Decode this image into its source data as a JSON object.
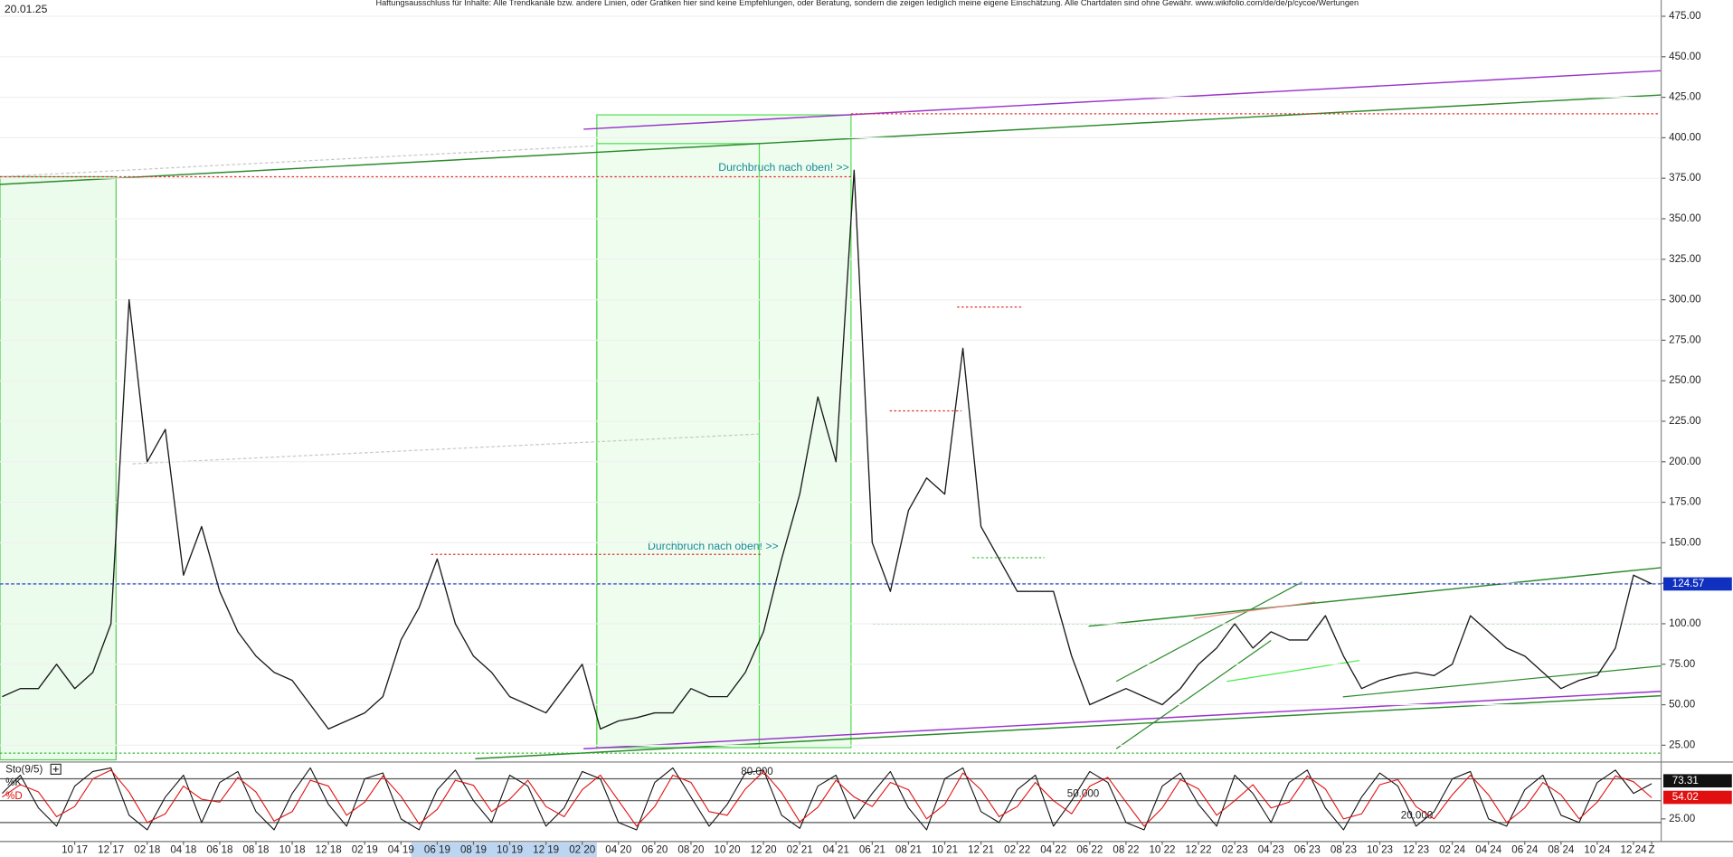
{
  "chart_data": [
    {
      "type": "line",
      "title": "Haftungsausschluss für Inhalte: Alle Trendkanäle bzw. andere Linien, oder Grafiken hier sind keine Empfehlungen, oder Beratung, sondern die zeigen lediglich meine eigene Einschätzung. Alle Chartdaten sind ohne Gewähr. www.wikifolio.com/de/de/p/cycoe/Wertungen",
      "date_label": "20.01.25",
      "annotations": [
        "Durchbruch nach oben! >>",
        "Durchbruch nach oben! >>"
      ],
      "categories": [
        null,
        null,
        null,
        null,
        "10 17",
        null,
        "12 17",
        null,
        "02 18",
        null,
        "04 18",
        null,
        "06 18",
        null,
        "08 18",
        null,
        "10 18",
        null,
        "12 18",
        null,
        "02 19",
        null,
        "04 19",
        null,
        "06 19",
        null,
        "08 19",
        null,
        "10 19",
        null,
        "12 19",
        null,
        "02 20",
        null,
        "04 20",
        null,
        "06 20",
        null,
        "08 20",
        null,
        "10 20",
        null,
        "12 20",
        null,
        "02 21",
        null,
        "04 21",
        null,
        "06 21",
        null,
        "08 21",
        null,
        "10 21",
        null,
        "12 21",
        null,
        "02 22",
        null,
        "04 22",
        null,
        "06 22",
        null,
        "08 22",
        null,
        "10 22",
        null,
        "12 22",
        null,
        "02 23",
        null,
        "04 23",
        null,
        "06 23",
        null,
        "08 23",
        null,
        "10 23",
        null,
        "12 23",
        null,
        "02 24",
        null,
        "04 24",
        null,
        "06 24",
        null,
        "08 24",
        null,
        "10 24",
        null,
        "12 24",
        "Z"
      ],
      "values": [
        55,
        60,
        60,
        75,
        60,
        70,
        100,
        300,
        200,
        220,
        130,
        160,
        120,
        95,
        80,
        70,
        65,
        50,
        35,
        40,
        45,
        55,
        90,
        110,
        140,
        100,
        80,
        70,
        55,
        50,
        45,
        60,
        75,
        35,
        40,
        42,
        45,
        45,
        60,
        55,
        55,
        70,
        95,
        140,
        180,
        240,
        200,
        380,
        150,
        120,
        170,
        190,
        180,
        270,
        160,
        140,
        120,
        120,
        120,
        80,
        50,
        55,
        60,
        55,
        50,
        60,
        75,
        85,
        100,
        85,
        95,
        90,
        90,
        105,
        80,
        60,
        65,
        68,
        70,
        68,
        75,
        105,
        95,
        85,
        80,
        70,
        60,
        65,
        68,
        85,
        130,
        124.57
      ],
      "color": "#1a1a1a",
      "last_color": "#1030c0",
      "ylim": [
        16,
        483
      ],
      "yticks": [
        {
          "value": 25,
          "label": "25.00"
        },
        {
          "value": 50,
          "label": "50.00"
        },
        {
          "value": 75,
          "label": "75.00"
        },
        {
          "value": 100,
          "label": "100.00"
        },
        {
          "value": 125,
          "label": "125.00"
        },
        {
          "value": 150,
          "label": "150.00"
        },
        {
          "value": 175,
          "label": "175.00"
        },
        {
          "value": 200,
          "label": "200.00"
        },
        {
          "value": 225,
          "label": "225.00"
        },
        {
          "value": 250,
          "label": "250.00"
        },
        {
          "value": 275,
          "label": "275.00"
        },
        {
          "value": 300,
          "label": "300.00"
        },
        {
          "value": 325,
          "label": "325.00"
        },
        {
          "value": 350,
          "label": "350.00"
        },
        {
          "value": 375,
          "label": "375.00"
        },
        {
          "value": 400,
          "label": "400.00"
        },
        {
          "value": 425,
          "label": "425.00"
        },
        {
          "value": 450,
          "label": "450.00"
        },
        {
          "value": 475,
          "label": "475.00"
        }
      ],
      "grid": true
    },
    {
      "type": "line",
      "title": "Sto(9/5)",
      "series": [
        {
          "name": "%K",
          "color": "#111111",
          "values": [
            60,
            85,
            40,
            15,
            70,
            90,
            95,
            30,
            10,
            55,
            85,
            20,
            75,
            90,
            35,
            10,
            60,
            95,
            45,
            15,
            80,
            88,
            25,
            10,
            65,
            92,
            50,
            20,
            85,
            70,
            15,
            40,
            90,
            80,
            20,
            10,
            75,
            95,
            55,
            15,
            45,
            88,
            92,
            30,
            12,
            70,
            85,
            25,
            60,
            90,
            40,
            10,
            80,
            95,
            35,
            20,
            65,
            85,
            15,
            50,
            90,
            75,
            20,
            10,
            70,
            88,
            45,
            15,
            85,
            60,
            20,
            75,
            92,
            40,
            10,
            55,
            88,
            70,
            15,
            35,
            80,
            90,
            25,
            15,
            65,
            85,
            30,
            20,
            75,
            92,
            60,
            73.31
          ]
        },
        {
          "name": "%D",
          "color": "#e01010",
          "values": [
            55,
            72,
            62,
            28,
            42,
            80,
            92,
            62,
            20,
            32,
            70,
            52,
            48,
            82,
            62,
            22,
            35,
            78,
            70,
            30,
            48,
            84,
            56,
            18,
            38,
            78,
            71,
            35,
            52,
            78,
            42,
            28,
            65,
            85,
            50,
            15,
            42,
            85,
            75,
            35,
            30,
            66,
            90,
            61,
            21,
            41,
            78,
            55,
            42,
            75,
            65,
            25,
            45,
            88,
            65,
            28,
            42,
            75,
            50,
            32,
            70,
            82,
            48,
            15,
            40,
            79,
            66,
            30,
            50,
            72,
            40,
            48,
            84,
            66,
            25,
            32,
            72,
            79,
            42,
            25,
            58,
            85,
            58,
            20,
            40,
            75,
            58,
            25,
            48,
            84,
            76,
            54.02
          ]
        }
      ],
      "ylim": [
        0,
        100
      ],
      "yticks": [
        {
          "value": 25,
          "label": "25.00"
        }
      ],
      "levels": [
        {
          "value": 80,
          "label": "80.000"
        },
        {
          "value": 50,
          "label": "50.000"
        },
        {
          "value": 20,
          "label": "20.000"
        }
      ]
    }
  ]
}
